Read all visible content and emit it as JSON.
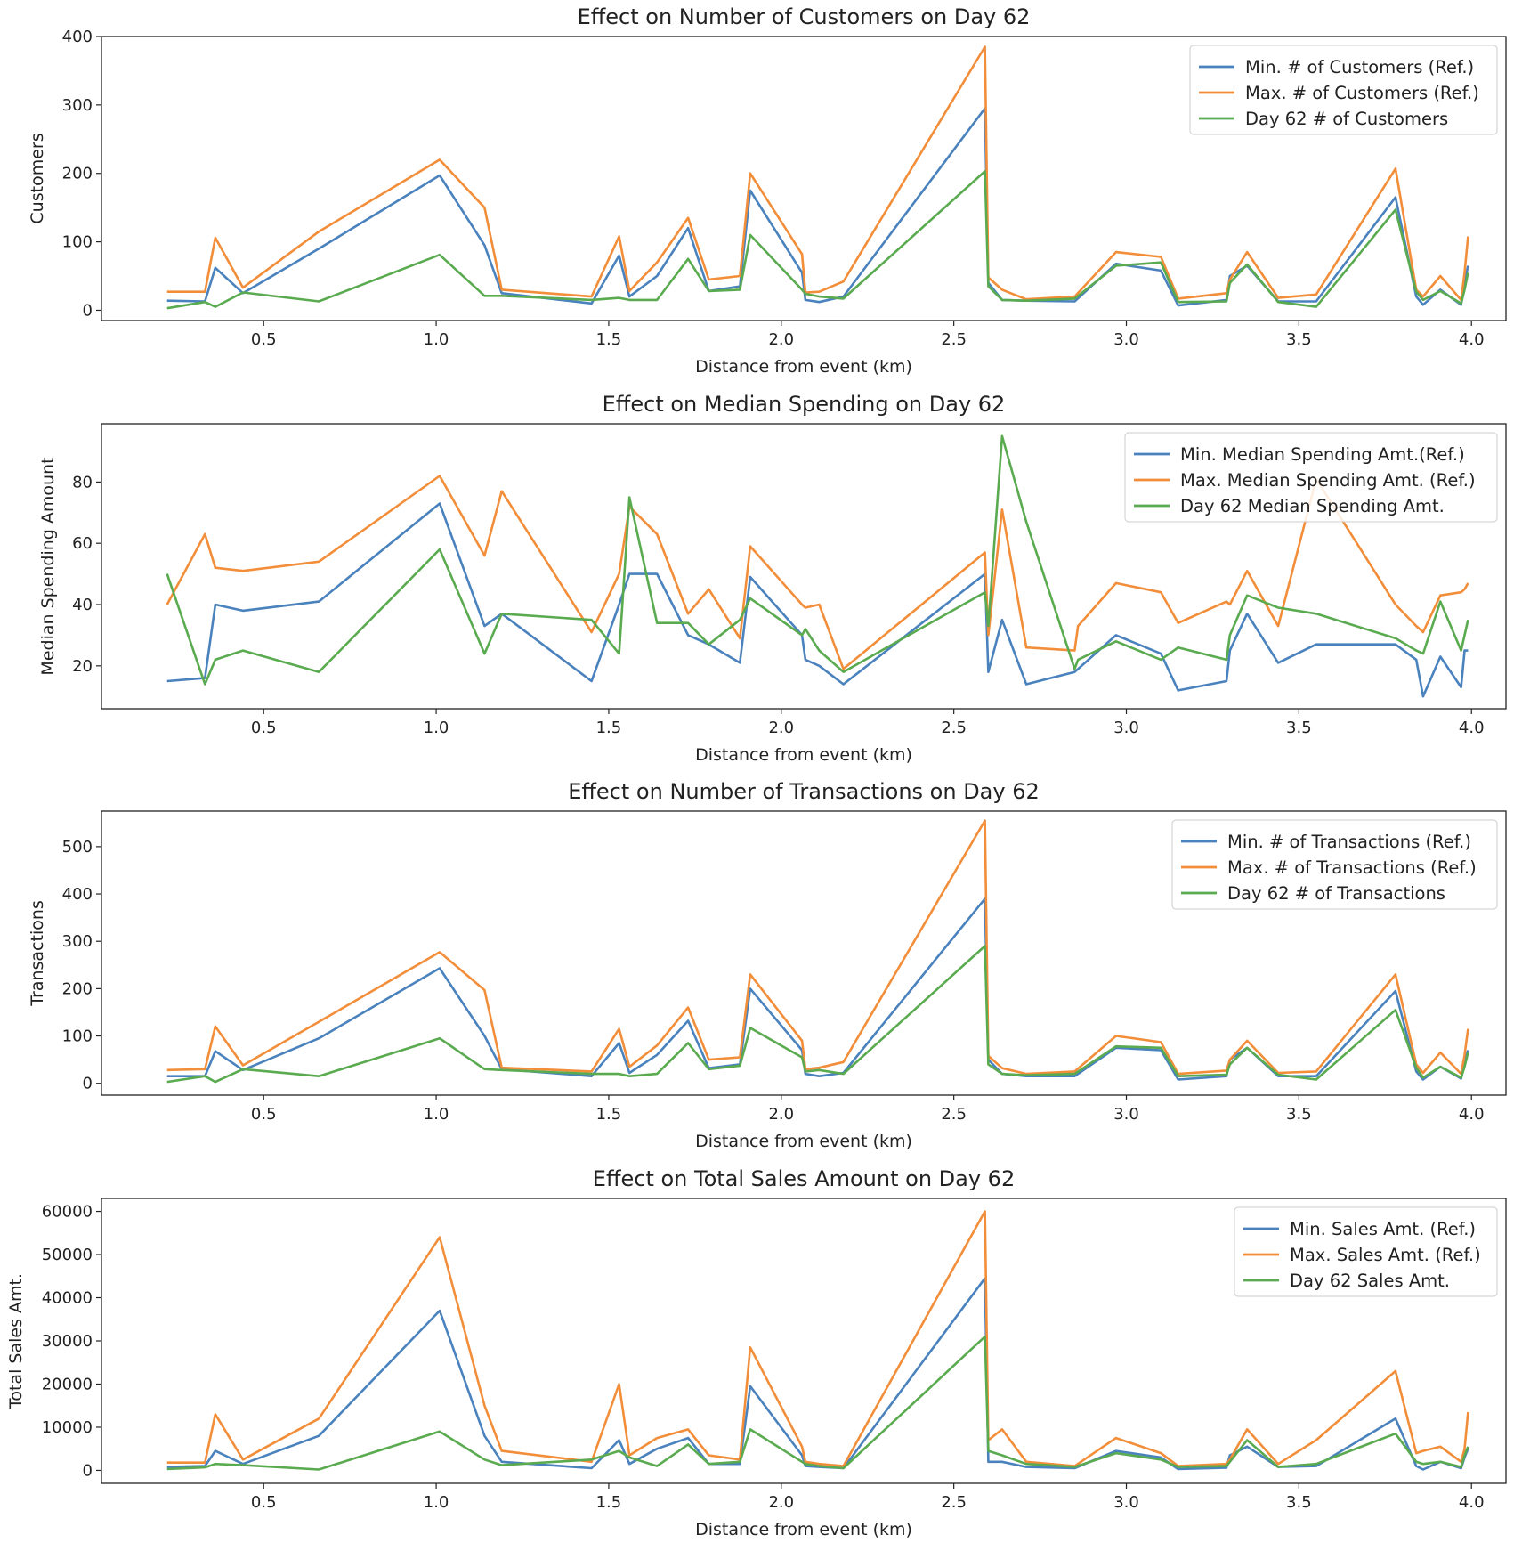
{
  "figure": {
    "colors": {
      "min": "#4a82bd",
      "max": "#f28e3a",
      "day": "#5aaa50"
    }
  },
  "chart_data": [
    {
      "type": "line",
      "title": "Effect on Number of Customers on Day 62",
      "xlabel": "Distance from event (km)",
      "ylabel": "Customers",
      "xlim": [
        0.03,
        4.1
      ],
      "ylim": [
        -15,
        400
      ],
      "xticks": [
        "0.5",
        "1.0",
        "1.5",
        "2.0",
        "2.5",
        "3.0",
        "3.5",
        "4.0"
      ],
      "yticks": [
        "0",
        "100",
        "200",
        "300",
        "400"
      ],
      "legend_position": "upper right",
      "x": [
        0.22,
        0.33,
        0.36,
        0.44,
        0.66,
        1.01,
        1.14,
        1.19,
        1.45,
        1.53,
        1.56,
        1.64,
        1.73,
        1.79,
        1.88,
        1.91,
        2.06,
        2.07,
        2.11,
        2.18,
        2.59,
        2.6,
        2.64,
        2.71,
        2.85,
        2.97,
        3.1,
        3.15,
        3.29,
        3.3,
        3.35,
        3.44,
        3.55,
        3.78,
        3.84,
        3.86,
        3.91,
        3.97,
        3.98,
        3.99
      ],
      "series": [
        {
          "name": "Min. # of Customers (Ref.)",
          "color": "#4a82bd",
          "values": [
            14,
            13,
            62,
            25,
            90,
            197,
            95,
            25,
            10,
            80,
            20,
            50,
            120,
            28,
            35,
            175,
            55,
            15,
            12,
            20,
            295,
            40,
            15,
            14,
            13,
            68,
            58,
            7,
            15,
            50,
            65,
            13,
            13,
            165,
            20,
            8,
            30,
            8,
            40,
            65
          ]
        },
        {
          "name": "Max. # of Customers (Ref.)",
          "color": "#f28e3a",
          "values": [
            27,
            27,
            106,
            33,
            115,
            220,
            150,
            30,
            20,
            108,
            28,
            70,
            135,
            45,
            50,
            200,
            82,
            26,
            27,
            42,
            385,
            48,
            30,
            16,
            20,
            85,
            78,
            17,
            25,
            45,
            85,
            18,
            23,
            207,
            30,
            20,
            50,
            15,
            55,
            108
          ]
        },
        {
          "name": "Day 62 # of Customers",
          "color": "#5aaa50",
          "values": [
            3,
            12,
            5,
            26,
            13,
            81,
            21,
            21,
            15,
            18,
            15,
            15,
            75,
            28,
            30,
            110,
            30,
            24,
            20,
            17,
            203,
            35,
            15,
            14,
            17,
            65,
            70,
            12,
            13,
            40,
            67,
            12,
            5,
            147,
            27,
            15,
            28,
            10,
            30,
            55
          ]
        }
      ]
    },
    {
      "type": "line",
      "title": "Effect on Median Spending on Day 62",
      "xlabel": "Distance from event (km)",
      "ylabel": "Median Spending Amount",
      "xlim": [
        0.03,
        4.1
      ],
      "ylim": [
        6,
        99
      ],
      "xticks": [
        "0.5",
        "1.0",
        "1.5",
        "2.0",
        "2.5",
        "3.0",
        "3.5",
        "4.0"
      ],
      "yticks": [
        "20",
        "40",
        "60",
        "80"
      ],
      "legend_position": "upper right",
      "x": [
        0.22,
        0.33,
        0.36,
        0.44,
        0.66,
        1.01,
        1.14,
        1.19,
        1.45,
        1.53,
        1.56,
        1.64,
        1.73,
        1.79,
        1.88,
        1.91,
        2.06,
        2.07,
        2.11,
        2.18,
        2.59,
        2.6,
        2.64,
        2.71,
        2.85,
        2.86,
        2.97,
        3.1,
        3.15,
        3.29,
        3.3,
        3.35,
        3.44,
        3.55,
        3.78,
        3.84,
        3.86,
        3.91,
        3.97,
        3.98,
        3.99
      ],
      "series": [
        {
          "name": "Min. Median Spending Amt.(Ref.)",
          "color": "#4a82bd",
          "values": [
            15,
            16,
            40,
            38,
            41,
            73,
            33,
            37,
            15,
            40,
            50,
            50,
            30,
            27,
            21,
            49,
            30,
            22,
            20,
            14,
            50,
            18,
            35,
            14,
            18,
            19,
            30,
            24,
            12,
            15,
            25,
            37,
            21,
            27,
            27,
            22,
            10,
            23,
            13,
            25,
            25
          ]
        },
        {
          "name": "Max. Median Spending Amt. (Ref.)",
          "color": "#f28e3a",
          "values": [
            40,
            63,
            52,
            51,
            54,
            82,
            56,
            77,
            31,
            50,
            72,
            63,
            37,
            45,
            29,
            59,
            40,
            39,
            40,
            19,
            57,
            30,
            71,
            26,
            25,
            33,
            47,
            44,
            34,
            41,
            40,
            51,
            33,
            81,
            40,
            33,
            31,
            43,
            44,
            45,
            47
          ]
        },
        {
          "name": "Day 62 Median Spending Amt.",
          "color": "#5aaa50",
          "values": [
            50,
            14,
            22,
            25,
            18,
            58,
            24,
            37,
            35,
            24,
            75,
            34,
            34,
            27,
            35,
            42,
            30,
            32,
            25,
            18,
            44,
            33,
            95,
            67,
            19,
            22,
            28,
            22,
            26,
            22,
            30,
            43,
            39,
            37,
            29,
            25,
            24,
            41,
            25,
            30,
            35
          ]
        }
      ]
    },
    {
      "type": "line",
      "title": "Effect on Number of Transactions on Day 62",
      "xlabel": "Distance from event (km)",
      "ylabel": "Transactions",
      "xlim": [
        0.03,
        4.1
      ],
      "ylim": [
        -25,
        575
      ],
      "xticks": [
        "0.5",
        "1.0",
        "1.5",
        "2.0",
        "2.5",
        "3.0",
        "3.5",
        "4.0"
      ],
      "yticks": [
        "0",
        "100",
        "200",
        "300",
        "400",
        "500"
      ],
      "legend_position": "upper right",
      "x": [
        0.22,
        0.33,
        0.36,
        0.44,
        0.66,
        1.01,
        1.14,
        1.19,
        1.45,
        1.53,
        1.56,
        1.64,
        1.73,
        1.79,
        1.88,
        1.91,
        2.06,
        2.07,
        2.11,
        2.18,
        2.59,
        2.6,
        2.64,
        2.71,
        2.85,
        2.97,
        3.1,
        3.15,
        3.29,
        3.3,
        3.35,
        3.44,
        3.55,
        3.78,
        3.84,
        3.86,
        3.91,
        3.97,
        3.98,
        3.99
      ],
      "series": [
        {
          "name": "Min. # of Transactions (Ref.)",
          "color": "#4a82bd",
          "values": [
            15,
            15,
            68,
            28,
            95,
            243,
            100,
            30,
            15,
            85,
            22,
            60,
            132,
            32,
            40,
            200,
            70,
            20,
            15,
            22,
            390,
            50,
            20,
            15,
            15,
            75,
            70,
            8,
            15,
            50,
            75,
            15,
            15,
            195,
            25,
            8,
            35,
            10,
            45,
            70
          ]
        },
        {
          "name": "Max. # of Transactions (Ref.)",
          "color": "#f28e3a",
          "values": [
            28,
            30,
            120,
            38,
            130,
            277,
            197,
            33,
            25,
            115,
            35,
            80,
            160,
            50,
            55,
            230,
            90,
            30,
            33,
            45,
            555,
            58,
            32,
            20,
            25,
            100,
            87,
            20,
            27,
            50,
            90,
            22,
            25,
            230,
            40,
            22,
            65,
            20,
            60,
            115
          ]
        },
        {
          "name": "Day 62 # of Transactions",
          "color": "#5aaa50",
          "values": [
            3,
            15,
            3,
            30,
            15,
            95,
            30,
            28,
            20,
            20,
            15,
            20,
            85,
            30,
            37,
            117,
            55,
            25,
            28,
            20,
            290,
            40,
            20,
            17,
            20,
            78,
            75,
            15,
            18,
            40,
            75,
            18,
            8,
            155,
            33,
            12,
            35,
            12,
            35,
            65
          ]
        }
      ]
    },
    {
      "type": "line",
      "title": "Effect on Total Sales Amount on Day 62",
      "xlabel": "Distance from event (km)",
      "ylabel": "Total Sales Amt.",
      "xlim": [
        0.03,
        4.1
      ],
      "ylim": [
        -3000,
        63000
      ],
      "xticks": [
        "0.5",
        "1.0",
        "1.5",
        "2.0",
        "2.5",
        "3.0",
        "3.5",
        "4.0"
      ],
      "yticks": [
        "0",
        "10000",
        "20000",
        "30000",
        "40000",
        "50000",
        "60000"
      ],
      "legend_position": "upper right",
      "x": [
        0.22,
        0.33,
        0.36,
        0.44,
        0.66,
        1.01,
        1.14,
        1.19,
        1.45,
        1.53,
        1.56,
        1.64,
        1.73,
        1.79,
        1.88,
        1.91,
        2.06,
        2.07,
        2.11,
        2.18,
        2.59,
        2.6,
        2.64,
        2.71,
        2.85,
        2.97,
        3.1,
        3.15,
        3.29,
        3.3,
        3.35,
        3.44,
        3.55,
        3.78,
        3.84,
        3.86,
        3.91,
        3.97,
        3.98,
        3.99
      ],
      "series": [
        {
          "name": "Min. Sales Amt. (Ref.)",
          "color": "#4a82bd",
          "values": [
            800,
            1000,
            4500,
            1500,
            8000,
            37000,
            8000,
            2000,
            500,
            7000,
            1500,
            5000,
            7500,
            1500,
            1500,
            19500,
            3500,
            1000,
            800,
            500,
            44500,
            2000,
            2000,
            800,
            500,
            4500,
            3000,
            300,
            600,
            3500,
            5500,
            800,
            1000,
            12000,
            1000,
            200,
            2000,
            500,
            3000,
            5000
          ]
        },
        {
          "name": "Max. Sales Amt. (Ref.)",
          "color": "#f28e3a",
          "values": [
            1800,
            1800,
            13000,
            2500,
            12000,
            54000,
            15000,
            4500,
            2000,
            20000,
            3500,
            7500,
            9500,
            3500,
            2500,
            28500,
            5500,
            2000,
            1500,
            1000,
            60000,
            7000,
            9500,
            2000,
            1000,
            7500,
            4000,
            1000,
            1500,
            2500,
            9500,
            1500,
            7000,
            23000,
            4000,
            4500,
            5500,
            2000,
            5000,
            13500
          ]
        },
        {
          "name": "Day 62 Sales Amt.",
          "color": "#5aaa50",
          "values": [
            300,
            700,
            1500,
            1200,
            200,
            9000,
            2500,
            1200,
            2500,
            4500,
            3000,
            1000,
            6000,
            1500,
            2000,
            9500,
            2000,
            1500,
            1000,
            500,
            31000,
            4500,
            3500,
            1500,
            800,
            4000,
            2500,
            800,
            1000,
            2000,
            7000,
            800,
            1500,
            8500,
            2000,
            1500,
            2000,
            800,
            3500,
            5500
          ]
        }
      ]
    }
  ]
}
